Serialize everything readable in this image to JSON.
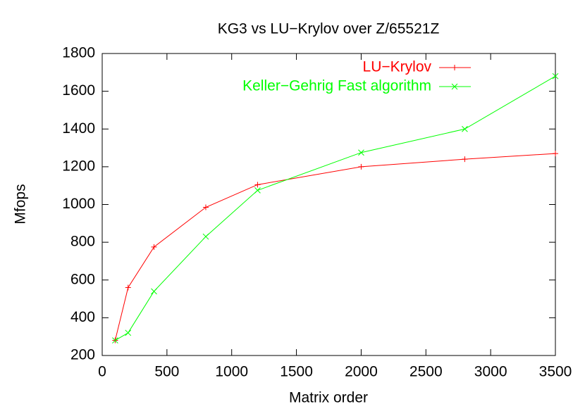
{
  "chart_data": {
    "type": "line",
    "title": "KG3 vs LU−Krylov over Z/65521Z",
    "x_label": "Matrix order",
    "y_label": "Mfops",
    "x": [
      100,
      200,
      400,
      800,
      1200,
      2000,
      2800,
      3500
    ],
    "series": [
      {
        "name": "LU−Krylov",
        "color": "#ff0000",
        "marker": "plus",
        "values": [
          280,
          560,
          775,
          985,
          1105,
          1200,
          1240,
          1270
        ]
      },
      {
        "name": "Keller−Gehrig Fast algorithm",
        "color": "#00ff00",
        "marker": "cross",
        "values": [
          280,
          320,
          540,
          830,
          1075,
          1275,
          1400,
          1680
        ]
      }
    ],
    "xlim": [
      0,
      3500
    ],
    "xticks": [
      0,
      500,
      1000,
      1500,
      2000,
      2500,
      3000,
      3500
    ],
    "ylim": [
      200,
      1800
    ],
    "yticks": [
      200,
      400,
      600,
      800,
      1000,
      1200,
      1400,
      1600,
      1800
    ],
    "legend": "top-right"
  }
}
